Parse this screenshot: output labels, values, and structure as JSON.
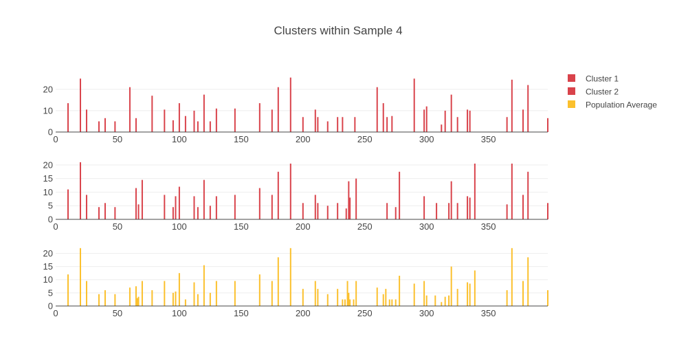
{
  "chart_data": {
    "type": "bar",
    "title": "Clusters within Sample 4",
    "legend_position": "top-right",
    "grid": true,
    "legend": [
      {
        "name": "Cluster 1",
        "color": "#d9434b"
      },
      {
        "name": "Cluster 2",
        "color": "#d9434b"
      },
      {
        "name": "Population Average",
        "color": "#fbc02d"
      }
    ],
    "panels": [
      {
        "series": "Cluster 1",
        "color": "#d9434b",
        "xlim": [
          0,
          398
        ],
        "xticks": [
          0,
          50,
          100,
          150,
          200,
          250,
          300,
          350
        ],
        "ylim": [
          0,
          28
        ],
        "yticks": [
          0,
          10,
          20
        ],
        "x": [
          10,
          20,
          25,
          35,
          40,
          48,
          60,
          65,
          78,
          88,
          95,
          100,
          105,
          112,
          115,
          120,
          125,
          130,
          145,
          165,
          175,
          180,
          190,
          200,
          210,
          212,
          220,
          228,
          232,
          242,
          260,
          265,
          268,
          272,
          290,
          298,
          300,
          312,
          315,
          320,
          325,
          333,
          335,
          365,
          369,
          378,
          382,
          398
        ],
        "values": [
          13.5,
          25,
          10.5,
          5,
          6.5,
          5,
          21,
          6.5,
          17,
          10.5,
          5.5,
          13.5,
          7.5,
          10,
          5,
          17.5,
          5,
          11,
          11,
          13.5,
          10.5,
          21,
          25.5,
          7,
          10.5,
          7,
          5,
          7,
          7,
          7,
          21,
          13.5,
          7,
          7.5,
          25,
          10.5,
          12,
          3.5,
          10,
          17.5,
          7,
          10.5,
          10,
          7,
          24.5,
          10.5,
          22,
          6.5
        ]
      },
      {
        "series": "Cluster 2",
        "color": "#d9434b",
        "xlim": [
          0,
          398
        ],
        "xticks": [
          0,
          50,
          100,
          150,
          200,
          250,
          300,
          350
        ],
        "ylim": [
          0,
          22.5
        ],
        "yticks": [
          0,
          5,
          10,
          15,
          20
        ],
        "x": [
          10,
          20,
          25,
          35,
          40,
          48,
          65,
          67,
          70,
          88,
          95,
          97,
          100,
          112,
          115,
          120,
          125,
          130,
          145,
          165,
          175,
          180,
          190,
          200,
          210,
          212,
          220,
          228,
          235,
          237,
          238,
          243,
          268,
          275,
          278,
          298,
          308,
          318,
          320,
          325,
          333,
          335,
          339,
          365,
          369,
          378,
          382,
          398
        ],
        "values": [
          11,
          21,
          9,
          4.5,
          6,
          4.5,
          11.5,
          5.5,
          14.5,
          9,
          4.5,
          8.5,
          12,
          8.5,
          4.5,
          14.5,
          5,
          8.5,
          9,
          11.5,
          9,
          17.5,
          20.5,
          6,
          9,
          6,
          5,
          6,
          4,
          14,
          8,
          15,
          6,
          4.5,
          17.5,
          8.5,
          6,
          6,
          14,
          6,
          8.5,
          8,
          20.5,
          5.5,
          20.5,
          9,
          17.5,
          6
        ]
      },
      {
        "series": "Population Average",
        "color": "#fbc02d",
        "xlim": [
          0,
          398
        ],
        "xticks": [
          0,
          50,
          100,
          150,
          200,
          250,
          300,
          350
        ],
        "ylim": [
          0,
          23
        ],
        "yticks": [
          0,
          5,
          10,
          15,
          20
        ],
        "x": [
          10,
          20,
          25,
          35,
          40,
          48,
          60,
          65,
          66,
          67,
          70,
          78,
          88,
          95,
          97,
          100,
          105,
          112,
          115,
          120,
          125,
          130,
          145,
          165,
          175,
          180,
          190,
          200,
          210,
          212,
          220,
          228,
          232,
          234,
          236,
          237,
          238,
          241,
          243,
          260,
          265,
          267,
          270,
          272,
          275,
          278,
          290,
          298,
          300,
          307,
          312,
          315,
          318,
          320,
          325,
          333,
          335,
          339,
          365,
          369,
          378,
          382,
          398
        ],
        "values": [
          12,
          22,
          9.5,
          4.5,
          6,
          4.5,
          7,
          7.5,
          3,
          3.5,
          9.5,
          6,
          9.5,
          5,
          5.5,
          12.5,
          2.5,
          9,
          4.5,
          15.5,
          5,
          9.5,
          9.5,
          12,
          9.5,
          18.5,
          22,
          6.5,
          9.5,
          6.5,
          4.5,
          6.5,
          2.5,
          2.5,
          9.5,
          5,
          2.5,
          2.5,
          9.5,
          7,
          4.5,
          6.5,
          2.5,
          2.5,
          2.5,
          11.5,
          8.5,
          9.5,
          4,
          4,
          1.5,
          3.5,
          4,
          15,
          6.5,
          9,
          8.5,
          13.5,
          6,
          22,
          9.5,
          18.5,
          6
        ]
      }
    ]
  }
}
